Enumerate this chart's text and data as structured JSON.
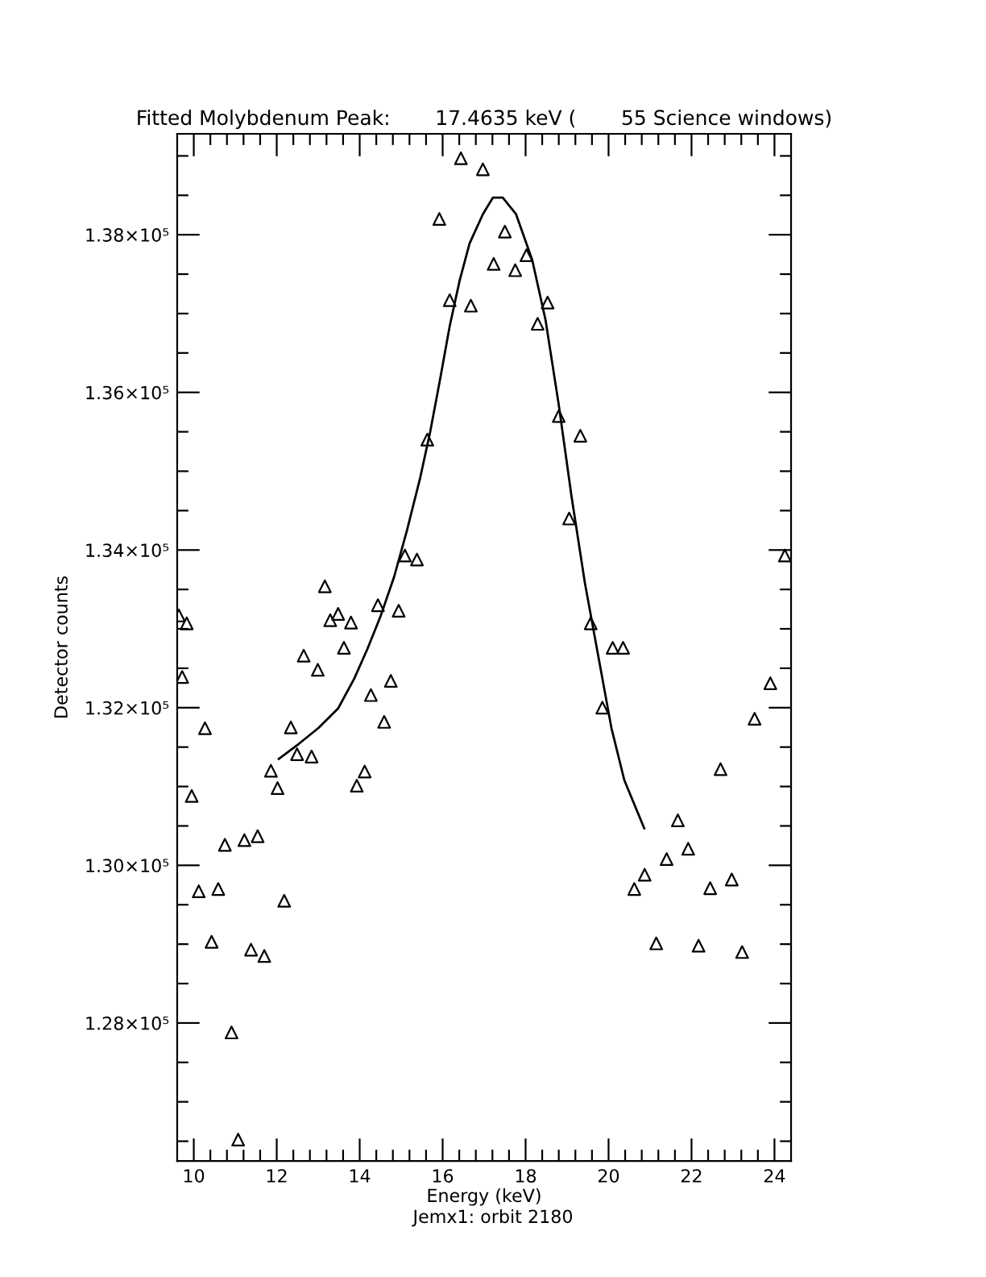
{
  "chart_data": {
    "type": "scatter",
    "title": "Fitted Molybdenum Peak:       17.4635 keV (       55 Science windows)",
    "xlabel": "Energy (keV)",
    "ylabel": "Detector counts",
    "annotations": [
      "Jemx1: orbit 2180"
    ],
    "series": [
      {
        "color": "#000000",
        "marker": "triangle",
        "x": [
          9.64,
          9.72,
          9.83,
          9.95,
          10.12,
          10.27,
          10.43,
          10.59,
          10.75,
          10.91,
          11.07,
          11.22,
          11.38,
          11.54,
          11.7,
          11.86,
          12.02,
          12.18,
          12.34,
          12.49,
          12.65,
          12.84,
          12.99,
          13.16,
          13.29,
          13.48,
          13.62,
          13.79,
          13.93,
          14.12,
          14.27,
          14.44,
          14.59,
          14.75,
          14.94,
          15.09,
          15.38,
          15.63,
          15.92,
          16.17,
          16.44,
          16.68,
          16.97,
          17.23,
          17.5,
          17.75,
          18.02,
          18.29,
          18.53,
          18.8,
          19.05,
          19.32,
          19.57,
          19.85,
          20.1,
          20.35,
          20.62,
          20.87,
          21.15,
          21.4,
          21.67,
          21.92,
          22.17,
          22.45,
          22.7,
          22.97,
          23.22,
          23.52,
          23.9,
          24.25
        ],
        "values": [
          133170,
          132390,
          133070,
          130880,
          129670,
          131740,
          129030,
          129700,
          130260,
          127880,
          126520,
          130320,
          128930,
          130370,
          128850,
          131200,
          130980,
          129550,
          131750,
          131410,
          132660,
          131380,
          132480,
          133540,
          133110,
          133190,
          132760,
          133080,
          131010,
          131190,
          132160,
          133300,
          131820,
          132340,
          133230,
          133930,
          133880,
          135400,
          138200,
          137170,
          138970,
          137100,
          138830,
          137630,
          138040,
          137550,
          137740,
          136870,
          137140,
          135700,
          134400,
          135450,
          133070,
          132000,
          132760,
          132760,
          129700,
          129880,
          129010,
          130080,
          130570,
          130210,
          128980,
          129710,
          131220,
          129820,
          128900,
          131860,
          132310,
          133930
        ]
      },
      {
        "type": "line",
        "color": "#000000",
        "marker": "none",
        "line_style": "solid",
        "x": [
          12.05,
          12.53,
          13.0,
          13.48,
          13.87,
          14.19,
          14.51,
          14.83,
          15.14,
          15.46,
          15.7,
          15.94,
          16.17,
          16.41,
          16.65,
          16.97,
          17.21,
          17.45,
          17.77,
          18.16,
          18.48,
          18.8,
          19.11,
          19.43,
          19.75,
          20.07,
          20.38,
          20.86
        ],
        "values": [
          131350,
          131540,
          131740,
          131990,
          132370,
          132750,
          133170,
          133660,
          134250,
          134920,
          135500,
          136170,
          136840,
          137420,
          137890,
          138260,
          138470,
          138470,
          138260,
          137680,
          136920,
          135840,
          134670,
          133580,
          132660,
          131740,
          131080,
          130470
        ]
      }
    ],
    "xlim": [
      9.6,
      24.4
    ],
    "xticks": [
      10,
      {
        "value": 10.4,
        "label": null
      },
      {
        "value": 10.8,
        "label": null
      },
      {
        "value": 11.2,
        "label": null
      },
      {
        "value": 11.6,
        "label": null
      },
      12,
      {
        "value": 12.4,
        "label": null
      },
      {
        "value": 12.8,
        "label": null
      },
      {
        "value": 13.2,
        "label": null
      },
      {
        "value": 13.6,
        "label": null
      },
      14,
      {
        "value": 14.4,
        "label": null
      },
      {
        "value": 14.8,
        "label": null
      },
      {
        "value": 15.2,
        "label": null
      },
      {
        "value": 15.6,
        "label": null
      },
      16,
      {
        "value": 16.4,
        "label": null
      },
      {
        "value": 16.8,
        "label": null
      },
      {
        "value": 17.2,
        "label": null
      },
      {
        "value": 17.6,
        "label": null
      },
      18,
      {
        "value": 18.4,
        "label": null
      },
      {
        "value": 18.8,
        "label": null
      },
      {
        "value": 19.2,
        "label": null
      },
      {
        "value": 19.6,
        "label": null
      },
      20,
      {
        "value": 20.4,
        "label": null
      },
      {
        "value": 20.8,
        "label": null
      },
      {
        "value": 21.2,
        "label": null
      },
      {
        "value": 21.6,
        "label": null
      },
      22,
      {
        "value": 22.4,
        "label": null
      },
      {
        "value": 22.8,
        "label": null
      },
      {
        "value": 23.2,
        "label": null
      },
      {
        "value": 23.6,
        "label": null
      },
      24
    ],
    "ylim": [
      126250,
      139280
    ],
    "yticks": [
      {
        "value": 126500,
        "label": null
      },
      {
        "value": 127000,
        "label": null
      },
      {
        "value": 127500,
        "label": null
      },
      {
        "value": 128000,
        "label": "1.28×10⁵"
      },
      {
        "value": 128500,
        "label": null
      },
      {
        "value": 129000,
        "label": null
      },
      {
        "value": 129500,
        "label": null
      },
      {
        "value": 130000,
        "label": "1.30×10⁵"
      },
      {
        "value": 130500,
        "label": null
      },
      {
        "value": 131000,
        "label": null
      },
      {
        "value": 131500,
        "label": null
      },
      {
        "value": 132000,
        "label": "1.32×10⁵"
      },
      {
        "value": 132500,
        "label": null
      },
      {
        "value": 133000,
        "label": null
      },
      {
        "value": 133500,
        "label": null
      },
      {
        "value": 134000,
        "label": "1.34×10⁵"
      },
      {
        "value": 134500,
        "label": null
      },
      {
        "value": 135000,
        "label": null
      },
      {
        "value": 135500,
        "label": null
      },
      {
        "value": 136000,
        "label": "1.36×10⁵"
      },
      {
        "value": 136500,
        "label": null
      },
      {
        "value": 137000,
        "label": null
      },
      {
        "value": 137500,
        "label": null
      },
      {
        "value": 138000,
        "label": "1.38×10⁵"
      },
      {
        "value": 138500,
        "label": null
      },
      {
        "value": 139000,
        "label": null
      }
    ],
    "grid": false,
    "legend": false
  }
}
